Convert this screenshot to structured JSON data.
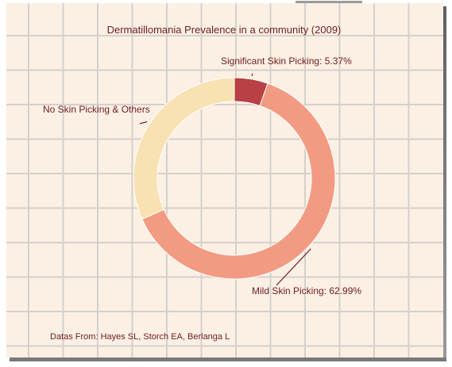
{
  "chart_data": {
    "type": "pie",
    "variant": "donut",
    "title": "Dermatillomania Prevalence in a community (2009)",
    "source": "Datas From: Hayes SL, Storch EA, Berlanga L",
    "slices": [
      {
        "label": "Significant Skin Picking: 5.37%",
        "value": 5.37,
        "color": "#b94045"
      },
      {
        "label": "Mild Skin Picking: 62.99%",
        "value": 62.99,
        "color": "#f39a83"
      },
      {
        "label": "No Skin Picking & Others",
        "value": 31.64,
        "color": "#f8e2b2"
      }
    ],
    "background": "#fbf0e3",
    "grid": true,
    "grid_color": "#d6d0cc",
    "text_color": "#6e1d24"
  }
}
